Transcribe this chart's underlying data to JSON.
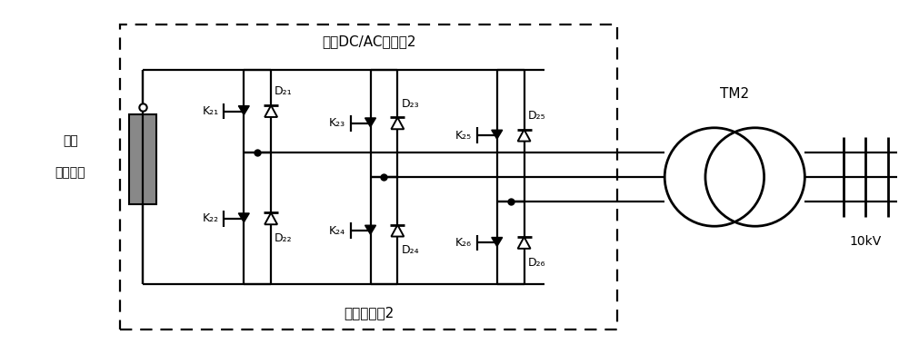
{
  "bg_color": "#ffffff",
  "line_color": "#000000",
  "top_label": "双向DC/AC变流器2",
  "bottom_label": "储能变流器2",
  "battery_label_1": "磷酸",
  "battery_label_2": "铁锂电池",
  "tm2_label": "TM2",
  "voltage_label": "10kV",
  "k_labels_top": [
    "K₂₁",
    "K₂₃",
    "K₂₅"
  ],
  "k_labels_bot": [
    "K₂₂",
    "K₂₄",
    "K₂₆"
  ],
  "d_labels_top": [
    "D₂₁",
    "D₂₃",
    "D₂₅"
  ],
  "d_labels_bot": [
    "D₂₂",
    "D₂₄",
    "D₂₆"
  ]
}
